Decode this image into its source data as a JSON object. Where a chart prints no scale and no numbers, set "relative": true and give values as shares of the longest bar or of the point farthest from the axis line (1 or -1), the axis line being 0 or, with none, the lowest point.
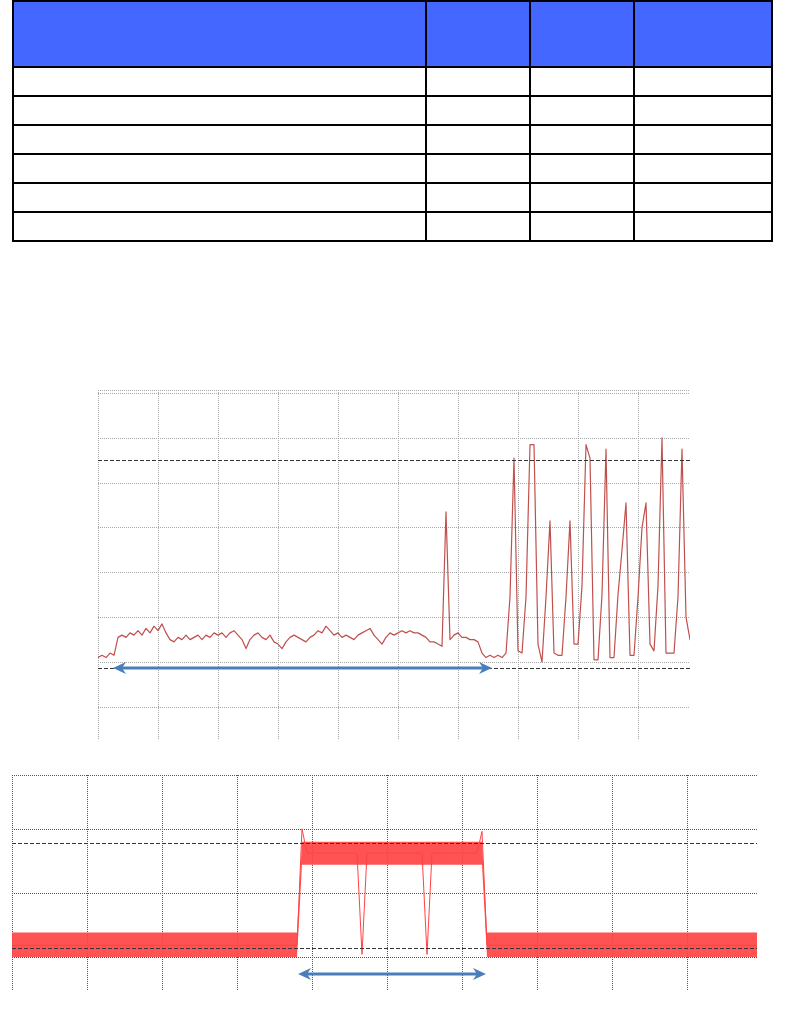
{
  "chart_data": [
    {
      "type": "line",
      "relative": true,
      "grid": true,
      "tick_labels": false,
      "categories": [
        null,
        null,
        null,
        null,
        null,
        null,
        null,
        null,
        null,
        null,
        null,
        null,
        null,
        null,
        null,
        null,
        null,
        null,
        null,
        null,
        null,
        null,
        null,
        null,
        null,
        null,
        null,
        null,
        null,
        null,
        null,
        null,
        null,
        null,
        null,
        null,
        null,
        null,
        null,
        null,
        null,
        null,
        null,
        null,
        null,
        null,
        null,
        null,
        null,
        null,
        null,
        null,
        null,
        null,
        null,
        null,
        null,
        null,
        null,
        null,
        null,
        null,
        null,
        null,
        null,
        null,
        null,
        null,
        null,
        null,
        null,
        null,
        null,
        null,
        null,
        null,
        null,
        null,
        null,
        null,
        null,
        null,
        null,
        null,
        null,
        null,
        null,
        null,
        null,
        null,
        null,
        null,
        null,
        null,
        null,
        null,
        null,
        null,
        null,
        null,
        null,
        null,
        null,
        null,
        null,
        null,
        null,
        null,
        null,
        null,
        null,
        null,
        null,
        null,
        null,
        null,
        null,
        null,
        null,
        null,
        null,
        null,
        null,
        null,
        null,
        null,
        null,
        null,
        null,
        null,
        null,
        null,
        null,
        null,
        null,
        null,
        null,
        null,
        null,
        null,
        null,
        null,
        null,
        null,
        null,
        null,
        null,
        null,
        null
      ],
      "series": [
        {
          "color": "#c0504d",
          "values": [
            0.02,
            0.03,
            0.02,
            0.04,
            0.03,
            0.11,
            0.12,
            0.11,
            0.13,
            0.12,
            0.14,
            0.12,
            0.15,
            0.13,
            0.16,
            0.14,
            0.17,
            0.13,
            0.1,
            0.09,
            0.11,
            0.1,
            0.12,
            0.1,
            0.11,
            0.12,
            0.1,
            0.12,
            0.11,
            0.13,
            0.12,
            0.13,
            0.11,
            0.13,
            0.14,
            0.12,
            0.1,
            0.06,
            0.1,
            0.12,
            0.13,
            0.11,
            0.1,
            0.12,
            0.09,
            0.08,
            0.06,
            0.09,
            0.11,
            0.12,
            0.11,
            0.1,
            0.09,
            0.11,
            0.12,
            0.14,
            0.13,
            0.16,
            0.14,
            0.12,
            0.13,
            0.11,
            0.12,
            0.11,
            0.1,
            0.12,
            0.13,
            0.14,
            0.15,
            0.12,
            0.1,
            0.08,
            0.11,
            0.13,
            0.12,
            0.13,
            0.14,
            0.13,
            0.14,
            0.13,
            0.13,
            0.12,
            0.11,
            0.09,
            0.09,
            0.08,
            0.07,
            0.67,
            0.1,
            0.12,
            0.13,
            0.11,
            0.11,
            0.1,
            0.1,
            0.09,
            0.04,
            0.02,
            0.03,
            0.02,
            0.03,
            0.02,
            0.04,
            0.29,
            0.91,
            0.05,
            0.04,
            0.29,
            0.97,
            0.97,
            0.08,
            0,
            0.29,
            0.63,
            0.04,
            0.03,
            0.03,
            0.29,
            0.63,
            0.08,
            0.08,
            0.34,
            0.97,
            0.91,
            0.01,
            0.01,
            0.3,
            0.95,
            0.02,
            0.02,
            0.3,
            0.5,
            0.71,
            0.03,
            0.03,
            0.29,
            0.6,
            0.71,
            0.08,
            0.05,
            0.34,
            1,
            0.04,
            0.04,
            0.04,
            0.29,
            0.95,
            0.2,
            0.1
          ]
        }
      ],
      "ref_lines": [
        {
          "axis": "y",
          "value": 0.9,
          "color": "#333333",
          "line_style": "dashed"
        },
        {
          "axis": "y",
          "value": -0.03,
          "color": "#333333",
          "line_style": "dashed"
        }
      ]
    },
    {
      "type": "line",
      "relative": true,
      "grid": true,
      "tick_labels": false,
      "categories": [
        null,
        null,
        null,
        null,
        null,
        null,
        null,
        null,
        null,
        null,
        null,
        null,
        null,
        null,
        null,
        null,
        null,
        null,
        null,
        null,
        null,
        null,
        null,
        null,
        null,
        null,
        null,
        null,
        null,
        null,
        null,
        null,
        null,
        null,
        null,
        null,
        null,
        null,
        null,
        null,
        null,
        null,
        null,
        null,
        null,
        null,
        null,
        null,
        null,
        null,
        null,
        null,
        null,
        null,
        null,
        null,
        null,
        null,
        null,
        null,
        null,
        null,
        null,
        null,
        null,
        null,
        null,
        null,
        null,
        null,
        null,
        null,
        null,
        null,
        null,
        null,
        null,
        null,
        null,
        null,
        null,
        null,
        null,
        null,
        null,
        null,
        null,
        null,
        null,
        null,
        null,
        null,
        null,
        null,
        null,
        null,
        null,
        null,
        null,
        null,
        null,
        null,
        null,
        null,
        null,
        null,
        null,
        null,
        null,
        null,
        null,
        null,
        null,
        null,
        null,
        null,
        null,
        null,
        null,
        null,
        null,
        null,
        null,
        null,
        null,
        null,
        null,
        null,
        null,
        null,
        null,
        null,
        null,
        null,
        null,
        null,
        null,
        null,
        null,
        null,
        null,
        null,
        null,
        null,
        null,
        null,
        null,
        null,
        null,
        null
      ],
      "series": [
        {
          "color": "#ff4343",
          "values": [
            0.09,
            0.09,
            0.09,
            0.09,
            0.09,
            0.09,
            0.09,
            0.09,
            0.09,
            0.09,
            0.09,
            0.09,
            0.09,
            0.09,
            0.09,
            0.09,
            0.09,
            0.09,
            0.09,
            0.09,
            0.09,
            0.09,
            0.09,
            0.09,
            0.09,
            0.09,
            0.09,
            0.09,
            0.09,
            0.09,
            0.09,
            0.09,
            0.09,
            0.09,
            0.09,
            0.09,
            0.09,
            0.09,
            0.09,
            0.09,
            0.09,
            0.09,
            0.09,
            0.09,
            0.09,
            0.09,
            0.09,
            0.09,
            0.09,
            0.09,
            0.09,
            0.09,
            0.09,
            0.09,
            0.09,
            0.09,
            0.09,
            0.09,
            1,
            0.81,
            0.81,
            0.81,
            0.81,
            0.81,
            0.81,
            0.81,
            0.81,
            0.81,
            0.81,
            0.81,
            0.02,
            0.81,
            0.81,
            0.81,
            0.81,
            0.81,
            0.81,
            0.81,
            0.81,
            0.81,
            0.81,
            0.81,
            0.81,
            0.02,
            0.81,
            0.81,
            0.81,
            0.81,
            0.81,
            0.81,
            0.81,
            0.81,
            0.81,
            0.81,
            0.98,
            0.09,
            0.09,
            0.09,
            0.09,
            0.09,
            0.09,
            0.09,
            0.09,
            0.09,
            0.09,
            0.09,
            0.09,
            0.09,
            0.09,
            0.09,
            0.09,
            0.09,
            0.09,
            0.09,
            0.09,
            0.09,
            0.09,
            0.09,
            0.09,
            0.09,
            0.09,
            0.09,
            0.09,
            0.09,
            0.09,
            0.09,
            0.09,
            0.09,
            0.09,
            0.09,
            0.09,
            0.09,
            0.09,
            0.09,
            0.09,
            0.09,
            0.09,
            0.09,
            0.09,
            0.09,
            0.09,
            0.09,
            0.09,
            0.09,
            0.09,
            0.09,
            0.09,
            0.09,
            0.09,
            0.09
          ],
          "lower": [
            0,
            0,
            0,
            0,
            0,
            0,
            0,
            0,
            0,
            0,
            0,
            0,
            0,
            0,
            0,
            0,
            0,
            0,
            0,
            0,
            0,
            0,
            0,
            0,
            0,
            0,
            0,
            0,
            0,
            0,
            0,
            0,
            0,
            0,
            0,
            0,
            0,
            0,
            0,
            0,
            0,
            0,
            0,
            0,
            0,
            0,
            0,
            0,
            0,
            0,
            0,
            0,
            0,
            0,
            0,
            0,
            0,
            0,
            0.72,
            0.72,
            0.72,
            0.72,
            0.72,
            0.72,
            0.72,
            0.72,
            0.72,
            0.72,
            0.72,
            0.72,
            0.72,
            0.72,
            0.72,
            0.72,
            0.72,
            0.72,
            0.72,
            0.72,
            0.72,
            0.72,
            0.72,
            0.72,
            0.72,
            0.72,
            0.72,
            0.72,
            0.72,
            0.72,
            0.72,
            0.72,
            0.72,
            0.72,
            0.72,
            0.72,
            0.72,
            0,
            0,
            0,
            0,
            0,
            0,
            0,
            0,
            0,
            0,
            0,
            0,
            0,
            0,
            0,
            0,
            0,
            0,
            0,
            0,
            0,
            0,
            0,
            0,
            0,
            0,
            0,
            0,
            0,
            0,
            0,
            0,
            0,
            0,
            0,
            0,
            0,
            0,
            0,
            0,
            0,
            0,
            0,
            0,
            0,
            0,
            0,
            0,
            0,
            0,
            0,
            0,
            0,
            0,
            0
          ],
          "upper": [
            0.19,
            0.19,
            0.19,
            0.19,
            0.19,
            0.19,
            0.19,
            0.19,
            0.19,
            0.19,
            0.19,
            0.19,
            0.19,
            0.19,
            0.19,
            0.19,
            0.19,
            0.19,
            0.19,
            0.19,
            0.19,
            0.19,
            0.19,
            0.19,
            0.19,
            0.19,
            0.19,
            0.19,
            0.19,
            0.19,
            0.19,
            0.19,
            0.19,
            0.19,
            0.19,
            0.19,
            0.19,
            0.19,
            0.19,
            0.19,
            0.19,
            0.19,
            0.19,
            0.19,
            0.19,
            0.19,
            0.19,
            0.19,
            0.19,
            0.19,
            0.19,
            0.19,
            0.19,
            0.19,
            0.19,
            0.19,
            0.19,
            0.19,
            0.9,
            0.9,
            0.9,
            0.9,
            0.9,
            0.9,
            0.9,
            0.9,
            0.9,
            0.9,
            0.9,
            0.9,
            0.9,
            0.9,
            0.9,
            0.9,
            0.9,
            0.9,
            0.9,
            0.9,
            0.9,
            0.9,
            0.9,
            0.9,
            0.9,
            0.9,
            0.9,
            0.9,
            0.9,
            0.9,
            0.9,
            0.9,
            0.9,
            0.9,
            0.9,
            0.9,
            0.9,
            0.19,
            0.19,
            0.19,
            0.19,
            0.19,
            0.19,
            0.19,
            0.19,
            0.19,
            0.19,
            0.19,
            0.19,
            0.19,
            0.19,
            0.19,
            0.19,
            0.19,
            0.19,
            0.19,
            0.19,
            0.19,
            0.19,
            0.19,
            0.19,
            0.19,
            0.19,
            0.19,
            0.19,
            0.19,
            0.19,
            0.19,
            0.19,
            0.19,
            0.19,
            0.19,
            0.19,
            0.19,
            0.19,
            0.19,
            0.19,
            0.19,
            0.19,
            0.19,
            0.19,
            0.19,
            0.19,
            0.19,
            0.19,
            0.19,
            0.19,
            0.19,
            0.19,
            0.19,
            0.19,
            0.19
          ]
        }
      ],
      "ref_lines": [
        {
          "axis": "y",
          "value": 0.89,
          "color": "#333333",
          "line_style": "dashed"
        },
        {
          "axis": "y",
          "value": 0.07,
          "color": "#333333",
          "line_style": "dashed"
        }
      ]
    }
  ]
}
